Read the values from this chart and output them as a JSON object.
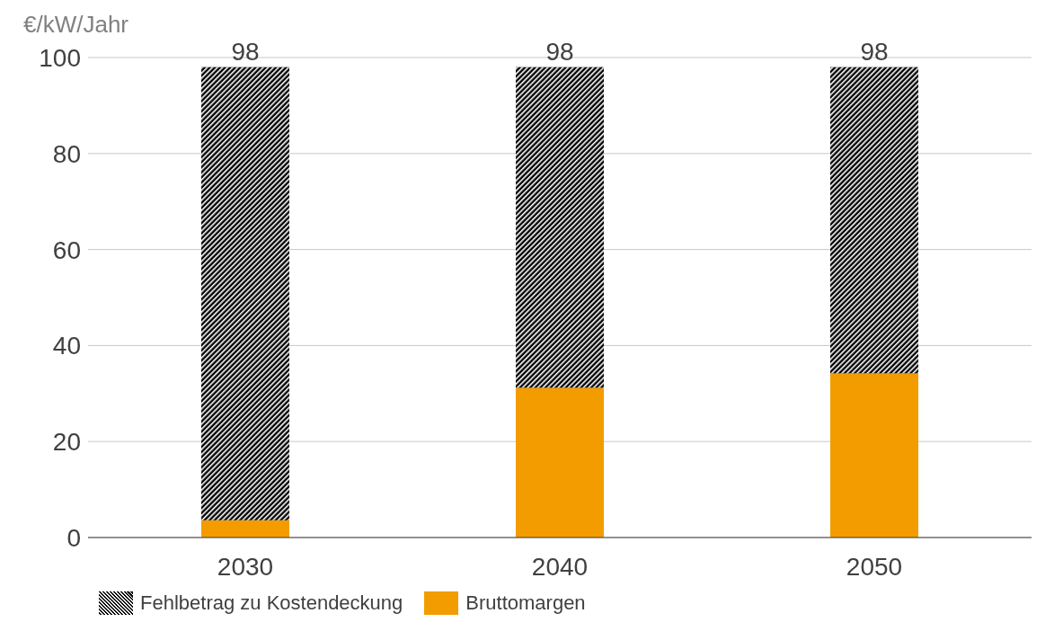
{
  "chart_data": {
    "type": "bar",
    "stacked": true,
    "ylabel": "€/kW/Jahr",
    "categories": [
      "2030",
      "2040",
      "2050"
    ],
    "series": [
      {
        "name": "Bruttomargen",
        "color": "#f39c00",
        "values": [
          3.6,
          31.2,
          34.2
        ]
      },
      {
        "name": "Fehlbetrag zu Kostendeckung",
        "color": "#000000",
        "values": [
          94.4,
          66.8,
          63.8
        ]
      }
    ],
    "totals": [
      "98",
      "98",
      "98"
    ],
    "ylim": [
      0,
      100
    ],
    "yticks": [
      0,
      20,
      40,
      60,
      80,
      100
    ],
    "grid": "y",
    "legend": "bottom left"
  }
}
